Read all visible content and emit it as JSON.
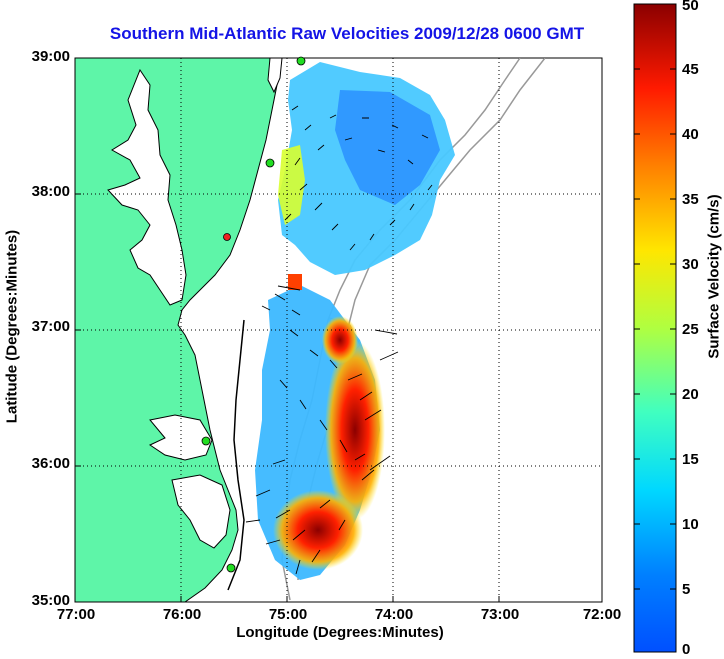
{
  "title": "Southern Mid-Atlantic Raw Velocities 2009/12/28 0600 GMT",
  "axes": {
    "xlabel": "Longitude (Degrees:Minutes)",
    "ylabel": "Latitude (Degrees:Minutes)",
    "x_ticks": [
      "77:00",
      "76:00",
      "75:00",
      "74:00",
      "73:00",
      "72:00"
    ],
    "y_ticks": [
      "39:00",
      "38:00",
      "37:00",
      "36:00",
      "35:00"
    ]
  },
  "colorbar": {
    "label": "Surface Velocity (cm/s)",
    "ticks": [
      "50",
      "45",
      "40",
      "35",
      "30",
      "25",
      "20",
      "15",
      "10",
      "5",
      "0"
    ]
  },
  "colors": {
    "title": "#1414e6",
    "land": "#5ef5a8",
    "coast": "#000000",
    "bathymetry": "#999999",
    "station_green": "#22dd22",
    "station_red": "#ee2222"
  },
  "chart_data": {
    "type": "heatmap",
    "title": "Southern Mid-Atlantic Raw Velocities 2009/12/28 0600 GMT",
    "xlabel": "Longitude (Degrees:Minutes)",
    "ylabel": "Latitude (Degrees:Minutes)",
    "xlim": [
      -77,
      -72
    ],
    "ylim": [
      35,
      39
    ],
    "clim": [
      0,
      50
    ],
    "colorbar_label": "Surface Velocity (cm/s)",
    "grid": true,
    "stations": [
      {
        "lon": -74.94,
        "lat": 38.99,
        "status": "green"
      },
      {
        "lon": -75.09,
        "lat": 38.22,
        "status": "green"
      },
      {
        "lon": -75.48,
        "lat": 37.68,
        "status": "red"
      },
      {
        "lon": -75.77,
        "lat": 36.18,
        "status": "green"
      },
      {
        "lon": -75.52,
        "lat": 35.26,
        "status": "green"
      }
    ],
    "velocity_regions": [
      {
        "name": "northern",
        "lon": [
          -75.05,
          -73.6
        ],
        "lat": [
          37.4,
          38.95
        ],
        "speed_min": 3,
        "speed_max": 28
      },
      {
        "name": "southern",
        "lon": [
          -75.35,
          -74.2
        ],
        "lat": [
          35.25,
          37.2
        ],
        "speed_min": 5,
        "speed_max": 50
      }
    ]
  }
}
